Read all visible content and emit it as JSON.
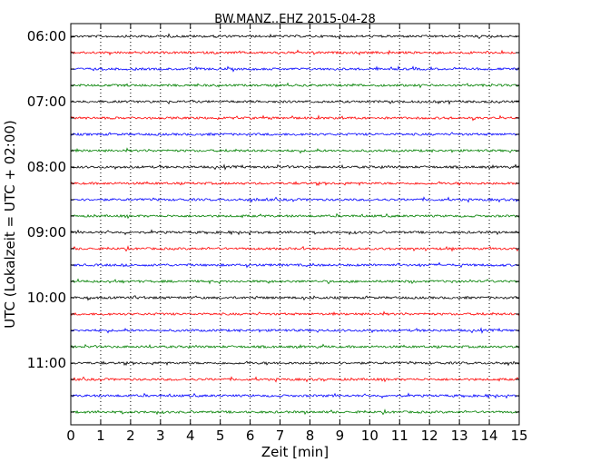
{
  "chart_data": {
    "type": "line",
    "title": "BW.MANZ..EHZ 2015-04-28",
    "xlabel": "Zeit  [min]",
    "ylabel": "UTC (Lokalzeit = UTC + 02:00)",
    "xlim": [
      0,
      15
    ],
    "x_ticks": [
      0,
      1,
      2,
      3,
      4,
      5,
      6,
      7,
      8,
      9,
      10,
      11,
      12,
      13,
      14,
      15
    ],
    "y_ticks": [
      "06:00",
      "07:00",
      "08:00",
      "09:00",
      "10:00",
      "11:00"
    ],
    "grid": "vertical-dotted",
    "trace_colors": [
      "#000000",
      "#ff0000",
      "#0000ff",
      "#008000"
    ],
    "series": [
      {
        "start": "06:00"
      },
      {
        "start": "06:15"
      },
      {
        "start": "06:30"
      },
      {
        "start": "06:45"
      },
      {
        "start": "07:00"
      },
      {
        "start": "07:15"
      },
      {
        "start": "07:30"
      },
      {
        "start": "07:45"
      },
      {
        "start": "08:00"
      },
      {
        "start": "08:15"
      },
      {
        "start": "08:30"
      },
      {
        "start": "08:45"
      },
      {
        "start": "09:00"
      },
      {
        "start": "09:15"
      },
      {
        "start": "09:30"
      },
      {
        "start": "09:45"
      },
      {
        "start": "10:00"
      },
      {
        "start": "10:15"
      },
      {
        "start": "10:30"
      },
      {
        "start": "10:45"
      },
      {
        "start": "11:00"
      },
      {
        "start": "11:15"
      },
      {
        "start": "11:30"
      },
      {
        "start": "11:45"
      }
    ]
  }
}
